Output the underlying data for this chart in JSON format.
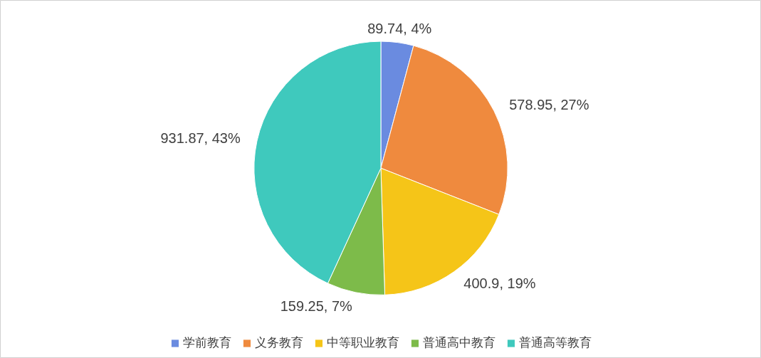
{
  "chart_data": {
    "type": "pie",
    "categories": [
      "学前教育",
      "义务教育",
      "中等职业教育",
      "普通高中教育",
      "普通高等教育"
    ],
    "values": [
      89.74,
      578.95,
      400.9,
      159.25,
      931.87
    ],
    "colors": [
      "#6a8be0",
      "#ef8a3e",
      "#f5c518",
      "#7dbb4a",
      "#3fc9bd"
    ],
    "value_labels": [
      "89.74, 4%",
      "578.95, 27%",
      "400.9, 19%",
      "159.25, 7%",
      "931.87, 43%"
    ],
    "legend": "bottom"
  }
}
